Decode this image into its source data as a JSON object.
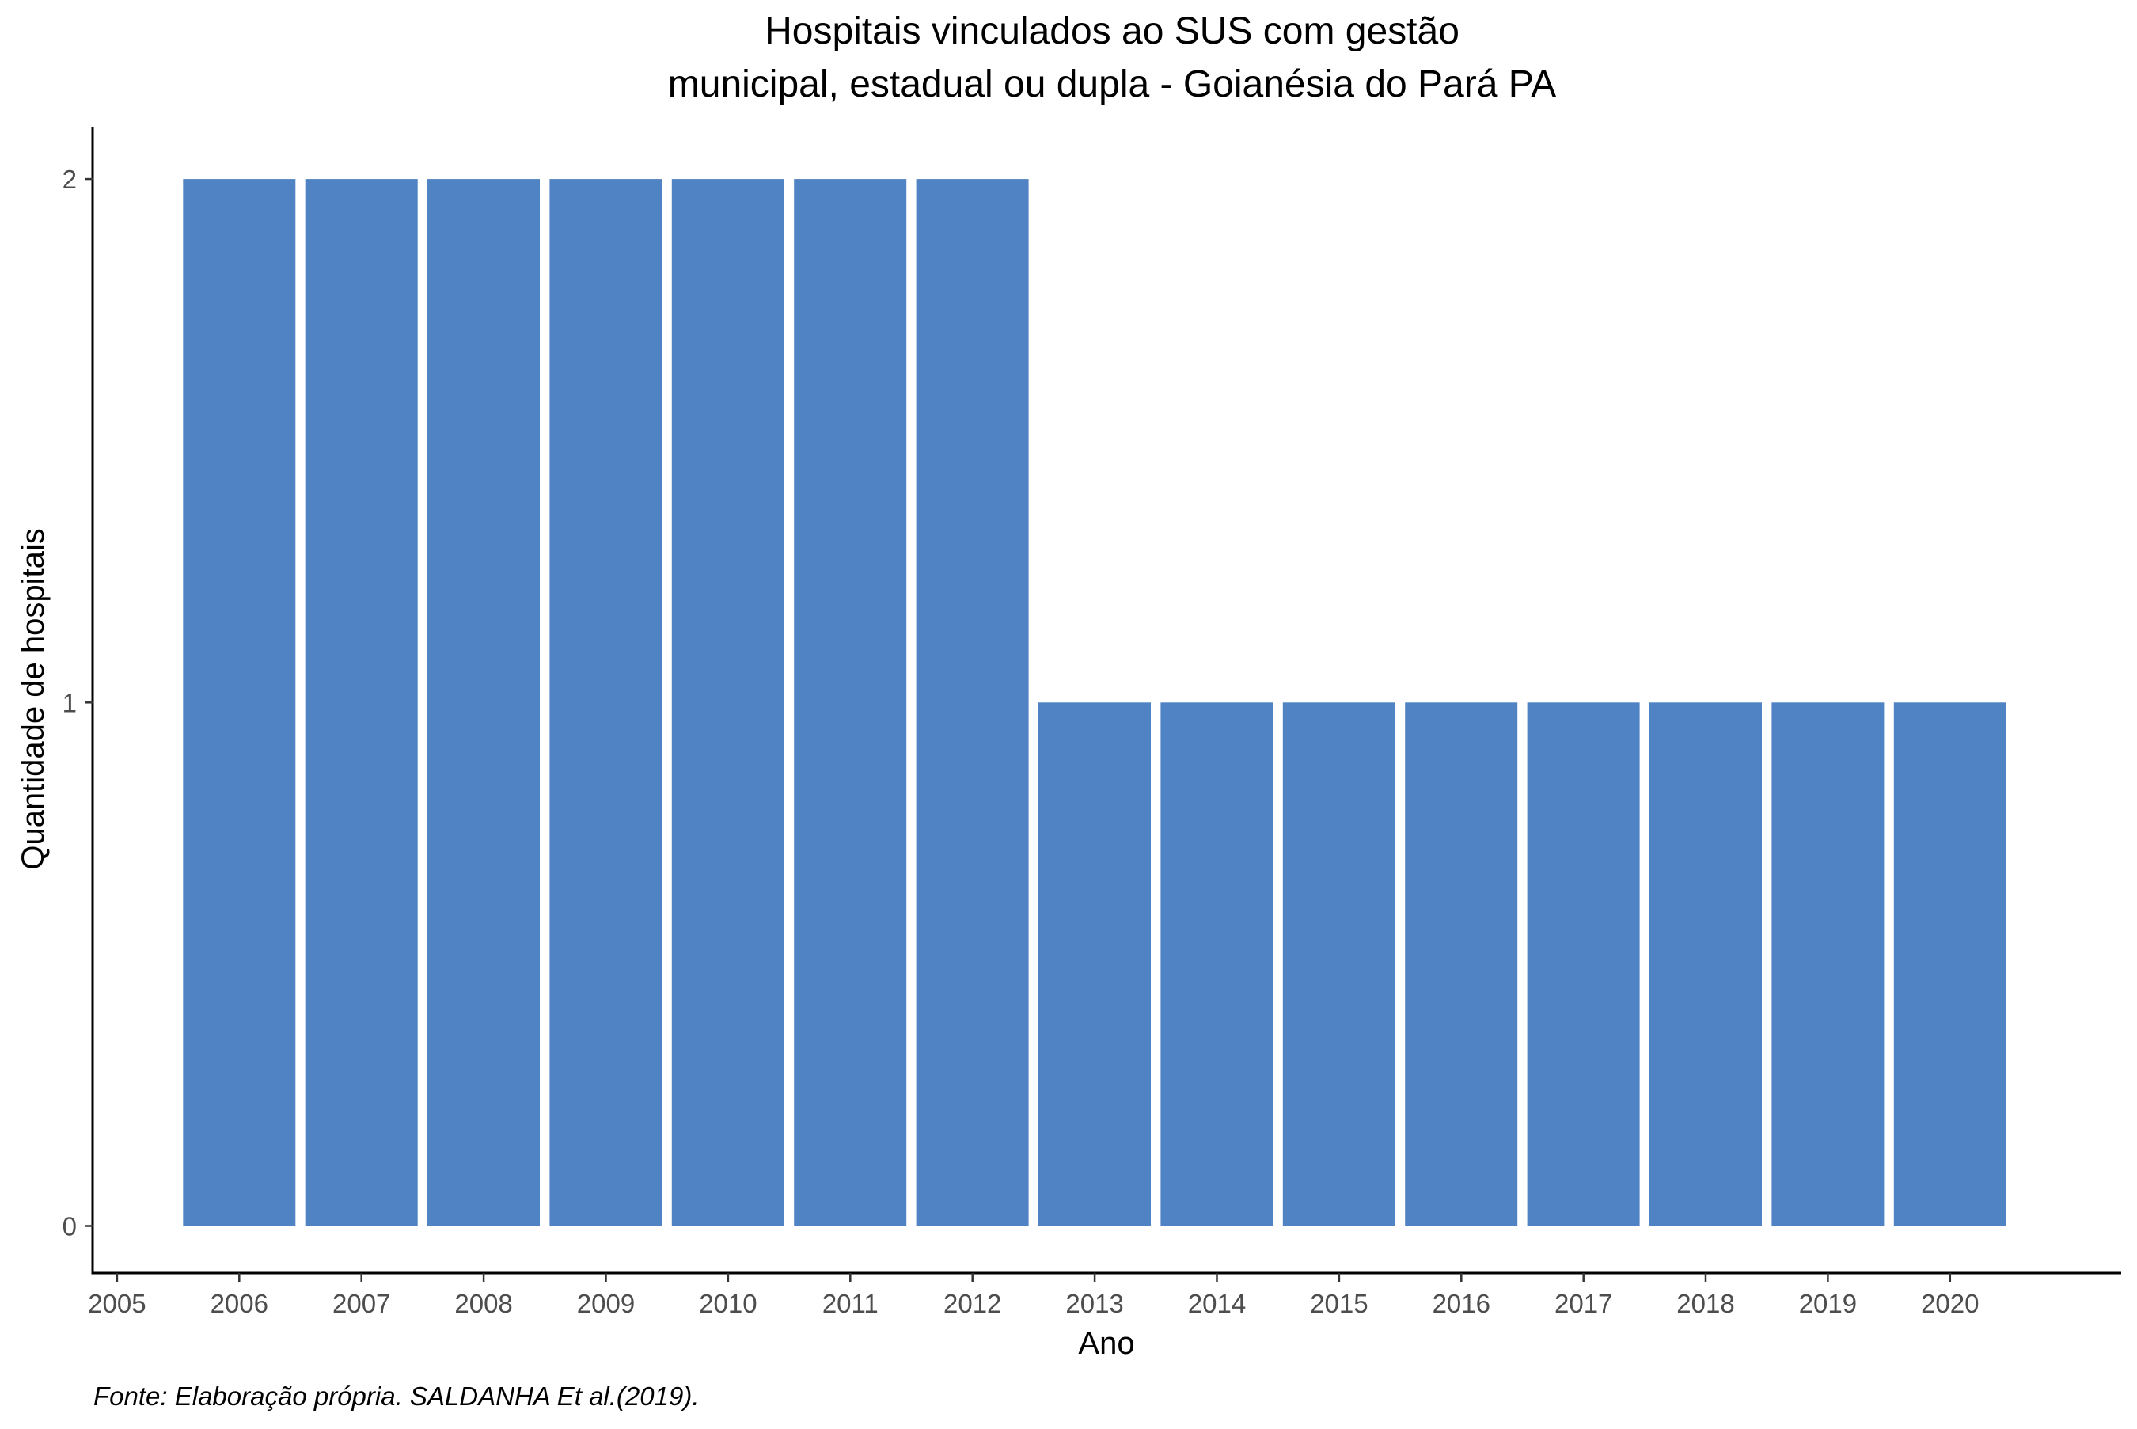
{
  "chart_data": {
    "type": "bar",
    "title_lines": [
      "Hospitais vinculados ao SUS com gestão",
      "municipal, estadual ou dupla -  Goianésia do Pará PA"
    ],
    "xlabel": "Ano",
    "ylabel": "Quantidade de hospitais",
    "caption": "Fonte: Elaboração própria. SALDANHA Et al.(2019).",
    "categories": [
      2006,
      2007,
      2008,
      2009,
      2010,
      2011,
      2012,
      2013,
      2014,
      2015,
      2016,
      2017,
      2018,
      2019,
      2020
    ],
    "values": [
      2,
      2,
      2,
      2,
      2,
      2,
      2,
      1,
      1,
      1,
      1,
      1,
      1,
      1,
      1
    ],
    "x_ticks": [
      "2005",
      "2006",
      "2007",
      "2008",
      "2009",
      "2010",
      "2011",
      "2012",
      "2013",
      "2014",
      "2015",
      "2016",
      "2017",
      "2018",
      "2019",
      "2020"
    ],
    "y_ticks": [
      "0",
      "1",
      "2"
    ],
    "xlim": [
      2004.8,
      2021.4
    ],
    "ylim": [
      -0.09,
      2.1
    ],
    "bar_color": "#4f83c3",
    "grid": false,
    "legend": "none"
  }
}
